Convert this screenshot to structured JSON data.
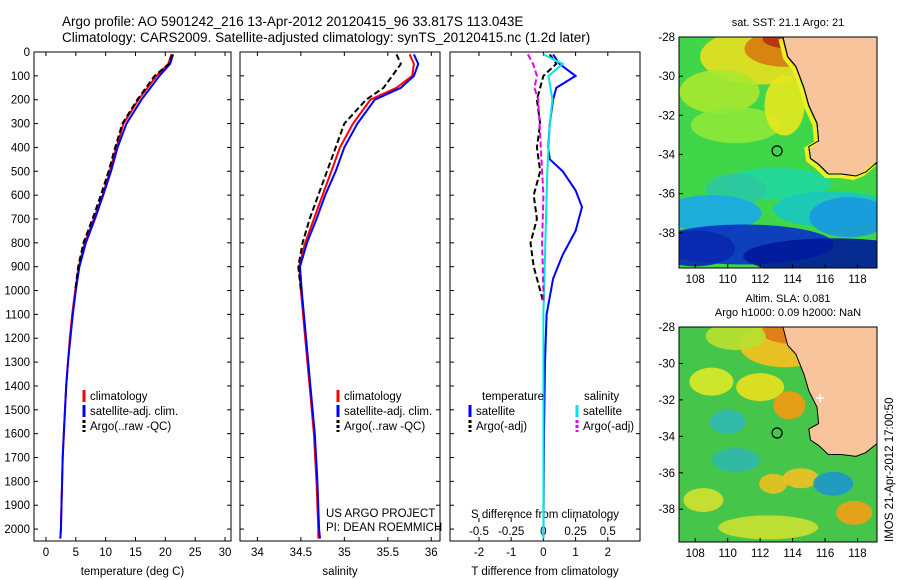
{
  "header": {
    "line1": "Argo profile: AO 5901242_216 13-Apr-2012 20120415_96 33.817S 113.043E",
    "line2": "Climatology: CARS2009. Satellite-adjusted climatology: synTS_20120415.nc (1.2d later)"
  },
  "side_label": "IMOS 21-Apr-2012 17:00:50",
  "colors": {
    "climatology": "#ff0000",
    "satellite": "#0000ff",
    "argo": "#000000",
    "sal_satellite": "#00e5e5",
    "sal_argo": "#e600e6",
    "land": "#f8c49c"
  },
  "chart_data": [
    {
      "type": "line",
      "xlabel": "temperature (deg C)",
      "ylabel": "",
      "xlim": [
        -2,
        31
      ],
      "ylim": [
        2050,
        0
      ],
      "xticks": [
        0,
        5,
        10,
        15,
        20,
        25,
        30
      ],
      "yticks": [
        0,
        100,
        200,
        300,
        400,
        500,
        600,
        700,
        800,
        900,
        1000,
        1100,
        1200,
        1300,
        1400,
        1500,
        1600,
        1700,
        1800,
        1900,
        2000
      ],
      "legend": [
        "climatology",
        "satellite-adj. clim.",
        "Argo(..raw -QC)"
      ],
      "legend_position": "lower-center",
      "series": [
        {
          "name": "climatology",
          "points": [
            [
              21.0,
              10
            ],
            [
              20.5,
              50
            ],
            [
              18.5,
              100
            ],
            [
              15.5,
              200
            ],
            [
              13.0,
              300
            ],
            [
              11.8,
              400
            ],
            [
              10.7,
              500
            ],
            [
              9.5,
              600
            ],
            [
              8.0,
              700
            ],
            [
              6.5,
              800
            ],
            [
              5.5,
              900
            ],
            [
              4.9,
              1000
            ],
            [
              4.4,
              1100
            ],
            [
              4.0,
              1200
            ],
            [
              3.7,
              1300
            ],
            [
              3.4,
              1400
            ],
            [
              3.2,
              1500
            ],
            [
              3.0,
              1600
            ],
            [
              2.8,
              1700
            ],
            [
              2.7,
              1800
            ],
            [
              2.6,
              1900
            ],
            [
              2.5,
              2000
            ],
            [
              2.4,
              2040
            ]
          ]
        },
        {
          "name": "satellite-adj. clim.",
          "points": [
            [
              21.3,
              10
            ],
            [
              20.8,
              50
            ],
            [
              19.0,
              100
            ],
            [
              16.0,
              200
            ],
            [
              13.5,
              300
            ],
            [
              12.0,
              400
            ],
            [
              10.9,
              500
            ],
            [
              9.6,
              600
            ],
            [
              8.2,
              700
            ],
            [
              6.7,
              800
            ],
            [
              5.6,
              900
            ],
            [
              5.0,
              1000
            ],
            [
              4.5,
              1100
            ],
            [
              4.1,
              1200
            ],
            [
              3.7,
              1300
            ],
            [
              3.4,
              1400
            ],
            [
              3.2,
              1500
            ],
            [
              3.0,
              1600
            ],
            [
              2.8,
              1700
            ],
            [
              2.7,
              1800
            ],
            [
              2.6,
              1900
            ],
            [
              2.5,
              2000
            ],
            [
              2.4,
              2040
            ]
          ]
        },
        {
          "name": "Argo(..raw -QC)",
          "points": [
            [
              21.2,
              10
            ],
            [
              20.6,
              50
            ],
            [
              18.2,
              100
            ],
            [
              15.3,
              200
            ],
            [
              12.8,
              300
            ],
            [
              11.6,
              400
            ],
            [
              10.5,
              500
            ],
            [
              9.2,
              600
            ],
            [
              7.8,
              700
            ],
            [
              6.3,
              800
            ],
            [
              5.4,
              900
            ],
            [
              4.9,
              1000
            ]
          ]
        }
      ]
    },
    {
      "type": "line",
      "xlabel": "salinity",
      "ylabel": "",
      "xlim": [
        33.8,
        36.1
      ],
      "ylim": [
        2050,
        0
      ],
      "xticks": [
        34,
        34.5,
        35,
        35.5,
        36
      ],
      "legend": [
        "climatology",
        "satellite-adj. clim.",
        "Argo(..raw -QC)"
      ],
      "legend_position": "lower-right",
      "annotation": [
        "US ARGO PROJECT",
        "PI: DEAN ROEMMICH"
      ],
      "series": [
        {
          "name": "climatology",
          "points": [
            [
              35.75,
              10
            ],
            [
              35.8,
              50
            ],
            [
              35.78,
              100
            ],
            [
              35.6,
              150
            ],
            [
              35.3,
              200
            ],
            [
              35.1,
              300
            ],
            [
              34.95,
              400
            ],
            [
              34.85,
              500
            ],
            [
              34.75,
              600
            ],
            [
              34.65,
              700
            ],
            [
              34.55,
              800
            ],
            [
              34.48,
              900
            ],
            [
              34.5,
              1000
            ],
            [
              34.55,
              1200
            ],
            [
              34.6,
              1400
            ],
            [
              34.65,
              1600
            ],
            [
              34.68,
              1800
            ],
            [
              34.7,
              2000
            ],
            [
              34.7,
              2040
            ]
          ]
        },
        {
          "name": "satellite-adj. clim.",
          "points": [
            [
              35.8,
              10
            ],
            [
              35.85,
              50
            ],
            [
              35.8,
              100
            ],
            [
              35.65,
              150
            ],
            [
              35.35,
              200
            ],
            [
              35.15,
              300
            ],
            [
              35.0,
              400
            ],
            [
              34.9,
              500
            ],
            [
              34.78,
              600
            ],
            [
              34.68,
              700
            ],
            [
              34.57,
              800
            ],
            [
              34.49,
              900
            ],
            [
              34.51,
              1000
            ],
            [
              34.56,
              1200
            ],
            [
              34.61,
              1400
            ],
            [
              34.66,
              1600
            ],
            [
              34.69,
              1800
            ],
            [
              34.71,
              2000
            ],
            [
              34.72,
              2040
            ]
          ]
        },
        {
          "name": "Argo(..raw -QC)",
          "points": [
            [
              35.6,
              10
            ],
            [
              35.65,
              50
            ],
            [
              35.55,
              100
            ],
            [
              35.45,
              150
            ],
            [
              35.25,
              200
            ],
            [
              35.0,
              300
            ],
            [
              34.9,
              400
            ],
            [
              34.8,
              500
            ],
            [
              34.7,
              600
            ],
            [
              34.6,
              700
            ],
            [
              34.52,
              800
            ],
            [
              34.47,
              900
            ],
            [
              34.5,
              1000
            ]
          ]
        }
      ]
    },
    {
      "type": "line",
      "xlabel": "T difference from climatology",
      "x2label": "S difference from climatology",
      "xlim": [
        -2.9,
        3.0
      ],
      "x2lim": [
        -0.725,
        0.75
      ],
      "ylim": [
        2050,
        0
      ],
      "xticks": [
        -2,
        -1,
        0,
        1,
        2
      ],
      "x2ticks": [
        -0.5,
        -0.25,
        0,
        0.25,
        0.5
      ],
      "legend": [
        "temperature",
        "satellite",
        "Argo(-adj)",
        "salinity",
        "satellite",
        "Argo(-adj)"
      ],
      "legend_position": "lower-center",
      "series": [
        {
          "name": "satellite",
          "points": [
            [
              0.3,
              10
            ],
            [
              0.5,
              50
            ],
            [
              1.0,
              100
            ],
            [
              0.4,
              150
            ],
            [
              0.3,
              200
            ],
            [
              0.2,
              300
            ],
            [
              0.15,
              400
            ],
            [
              0.2,
              450
            ],
            [
              0.6,
              500
            ],
            [
              1.0,
              580
            ],
            [
              1.2,
              650
            ],
            [
              1.0,
              750
            ],
            [
              0.6,
              850
            ],
            [
              0.3,
              950
            ],
            [
              0.1,
              1100
            ],
            [
              0.05,
              1300
            ],
            [
              0.02,
              1600
            ],
            [
              0.0,
              2040
            ]
          ]
        },
        {
          "name": "Argo(-adj)",
          "points": [
            [
              0.2,
              10
            ],
            [
              0.4,
              50
            ],
            [
              0.0,
              100
            ],
            [
              -0.2,
              200
            ],
            [
              -0.1,
              300
            ],
            [
              -0.2,
              400
            ],
            [
              -0.1,
              500
            ],
            [
              -0.3,
              600
            ],
            [
              -0.2,
              700
            ],
            [
              -0.4,
              800
            ],
            [
              -0.3,
              900
            ],
            [
              -0.1,
              1000
            ],
            [
              0.0,
              1050
            ]
          ]
        },
        {
          "name": "satellite",
          "points": [
            [
              0.0,
              10
            ],
            [
              0.15,
              50
            ],
            [
              0.04,
              100
            ],
            [
              0.07,
              200
            ],
            [
              0.05,
              300
            ],
            [
              0.03,
              500
            ],
            [
              0.02,
              700
            ],
            [
              0.01,
              900
            ],
            [
              0.0,
              1100
            ],
            [
              0.0,
              2040
            ]
          ]
        },
        {
          "name": "Argo(-adj)",
          "points": [
            [
              -0.12,
              10
            ],
            [
              -0.08,
              50
            ],
            [
              -0.05,
              100
            ],
            [
              -0.07,
              150
            ],
            [
              -0.04,
              200
            ],
            [
              -0.02,
              400
            ],
            [
              0.0,
              600
            ],
            [
              -0.01,
              800
            ],
            [
              0.0,
              1000
            ],
            [
              0.0,
              1050
            ]
          ]
        }
      ]
    },
    {
      "type": "heatmap",
      "title": "sat. SST: 21.1 Argo: 21",
      "xlim": [
        107,
        119.2
      ],
      "ylim": [
        -39.8,
        -28
      ],
      "xticks": [
        108,
        110,
        112,
        114,
        116,
        118
      ],
      "yticks": [
        -28,
        -30,
        -32,
        -34,
        -36,
        -38
      ],
      "marker": {
        "lon": 113.043,
        "lat": -33.817
      }
    },
    {
      "type": "heatmap",
      "title": [
        "Altim. SLA: 0.081",
        "Argo h1000: 0.09 h2000: NaN"
      ],
      "xlim": [
        107,
        119.2
      ],
      "ylim": [
        -39.8,
        -28
      ],
      "xticks": [
        108,
        110,
        112,
        114,
        116,
        118
      ],
      "yticks": [
        -28,
        -30,
        -32,
        -34,
        -36,
        -38
      ],
      "marker": {
        "lon": 113.043,
        "lat": -33.817
      }
    }
  ]
}
